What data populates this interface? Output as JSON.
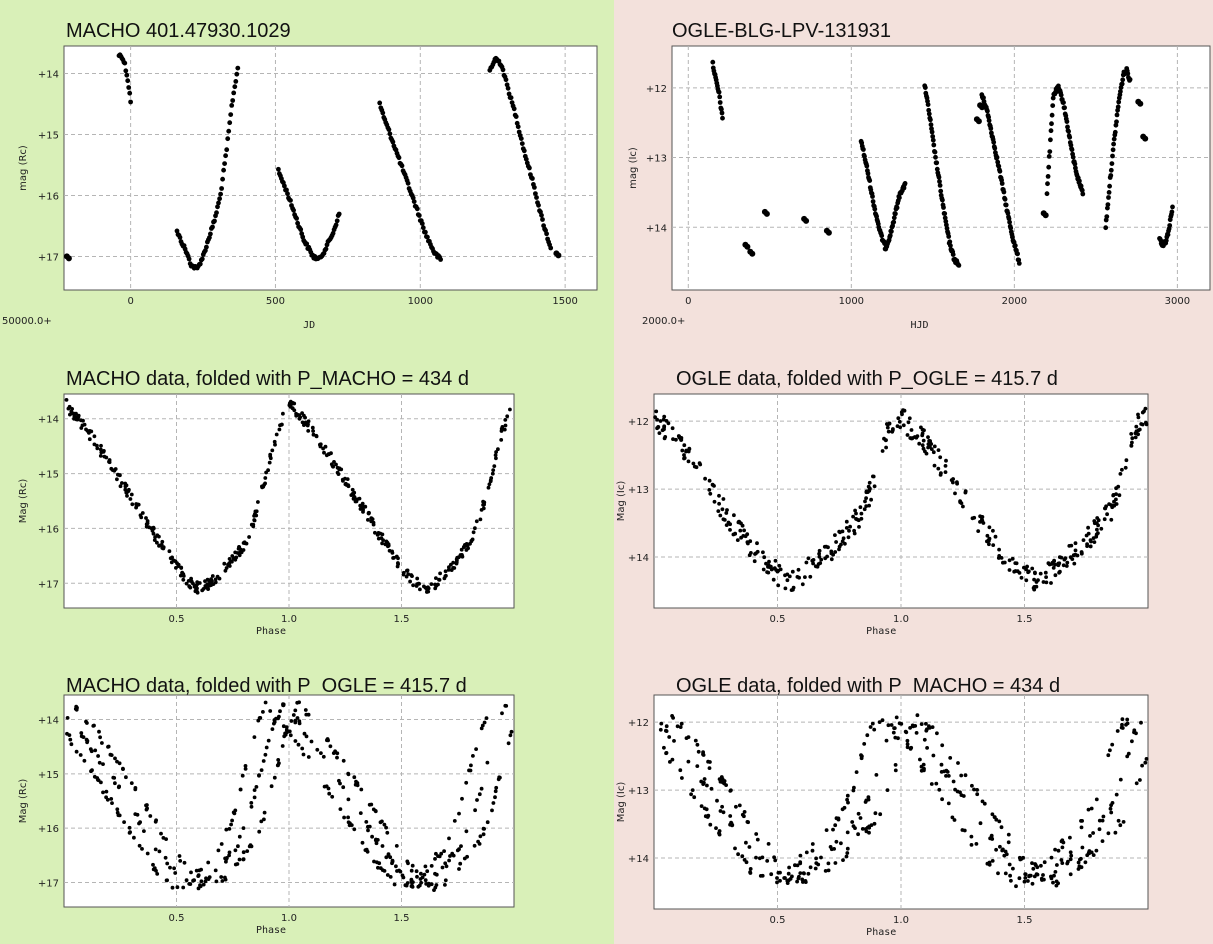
{
  "colors": {
    "left_panel_bg": "#d9f0b8",
    "right_panel_bg": "#f3e1dc",
    "marker": "#000000"
  },
  "chart_data": [
    {
      "id": "c1",
      "type": "scatter",
      "panel": "left",
      "title": "MACHO 401.47930.1029",
      "xlabel": "JD",
      "ylabel": "mag (Rc)",
      "x_offset_label": "50000.0+",
      "xlim": [
        -230,
        1610
      ],
      "ylim": [
        17.55,
        13.55
      ],
      "y_inverted": true,
      "xticks": [
        0,
        500,
        1000,
        1500
      ],
      "xtick_labels": [
        "0",
        "500",
        "1000",
        "1500"
      ],
      "yticks": [
        14,
        15,
        16,
        17
      ],
      "ytick_labels": [
        "+14",
        "+15",
        "+16",
        "+17"
      ],
      "grid": true,
      "segments": [
        {
          "x": [
            -40,
            -30,
            -20,
            -10,
            0
          ],
          "y": [
            13.7,
            13.72,
            13.85,
            14.1,
            14.45
          ]
        },
        {
          "x": [
            160,
            190,
            210,
            230,
            250,
            270,
            290,
            310,
            330,
            350,
            370
          ],
          "y": [
            16.6,
            16.9,
            17.15,
            17.2,
            17.0,
            16.7,
            16.4,
            16.0,
            15.3,
            14.5,
            13.9
          ]
        },
        {
          "x": [
            510,
            540,
            570,
            600,
            630,
            650,
            670,
            700,
            720
          ],
          "y": [
            15.6,
            15.95,
            16.35,
            16.75,
            17.0,
            17.05,
            16.9,
            16.6,
            16.3
          ]
        },
        {
          "x": [
            860,
            880,
            900,
            930,
            960,
            990,
            1020,
            1050,
            1070
          ],
          "y": [
            14.5,
            14.8,
            15.05,
            15.45,
            15.85,
            16.25,
            16.65,
            16.95,
            17.05
          ]
        },
        {
          "x": [
            1240,
            1260,
            1280,
            1300,
            1330,
            1360,
            1390,
            1410,
            1430,
            1450
          ],
          "y": [
            13.95,
            13.75,
            13.85,
            14.2,
            14.7,
            15.3,
            15.8,
            16.2,
            16.55,
            16.85
          ]
        }
      ],
      "points": [
        {
          "x": -220,
          "y": 17.0
        },
        {
          "x": 1470,
          "y": 16.95
        }
      ]
    },
    {
      "id": "c2",
      "type": "scatter",
      "panel": "right",
      "title": "OGLE-BLG-LPV-131931",
      "xlabel": "HJD",
      "ylabel": "mag (Ic)",
      "x_offset_label": "2000.0+",
      "xlim": [
        -100,
        3200
      ],
      "ylim": [
        14.9,
        11.4
      ],
      "y_inverted": true,
      "xticks": [
        0,
        1000,
        2000,
        3000
      ],
      "xtick_labels": [
        "0",
        "1000",
        "2000",
        "3000"
      ],
      "yticks": [
        12,
        13,
        14
      ],
      "ytick_labels": [
        "+12",
        "+13",
        "+14"
      ],
      "grid": true,
      "segments": [
        {
          "x": [
            150,
            170,
            190,
            210
          ],
          "y": [
            11.65,
            11.9,
            12.1,
            12.45
          ]
        },
        {
          "x": [
            1060,
            1100,
            1140,
            1180,
            1210,
            1240,
            1270,
            1300,
            1330
          ],
          "y": [
            12.75,
            13.2,
            13.7,
            14.1,
            14.3,
            14.1,
            13.8,
            13.5,
            13.4
          ]
        },
        {
          "x": [
            1450,
            1480,
            1510,
            1540,
            1570,
            1600,
            1630,
            1660
          ],
          "y": [
            11.95,
            12.4,
            12.9,
            13.35,
            13.8,
            14.2,
            14.45,
            14.55
          ]
        },
        {
          "x": [
            1800,
            1830,
            1870,
            1910,
            1950,
            1990,
            2030
          ],
          "y": [
            12.1,
            12.3,
            12.75,
            13.2,
            13.7,
            14.15,
            14.5
          ]
        },
        {
          "x": [
            2200,
            2240,
            2270,
            2300,
            2330,
            2360,
            2390,
            2420
          ],
          "y": [
            13.5,
            12.1,
            12.0,
            12.2,
            12.6,
            13.0,
            13.3,
            13.5
          ]
        },
        {
          "x": [
            2560,
            2580,
            2610,
            2640,
            2670,
            2690,
            2710
          ],
          "y": [
            14.0,
            13.5,
            12.8,
            12.2,
            11.8,
            11.75,
            11.9
          ]
        },
        {
          "x": [
            2890,
            2910,
            2930,
            2950,
            2970
          ],
          "y": [
            14.15,
            14.25,
            14.2,
            14.0,
            13.7
          ]
        }
      ],
      "points": [
        {
          "x": 350,
          "y": 14.25
        },
        {
          "x": 380,
          "y": 14.35
        },
        {
          "x": 470,
          "y": 13.78
        },
        {
          "x": 710,
          "y": 13.88
        },
        {
          "x": 850,
          "y": 14.05
        },
        {
          "x": 1770,
          "y": 12.45
        },
        {
          "x": 1790,
          "y": 12.25
        },
        {
          "x": 2180,
          "y": 13.8
        },
        {
          "x": 2760,
          "y": 12.2
        },
        {
          "x": 2790,
          "y": 12.7
        }
      ]
    },
    {
      "id": "c3",
      "type": "scatter",
      "panel": "left",
      "title": "MACHO data, folded with P_MACHO = 434 d",
      "xlabel": "Phase",
      "ylabel": "Mag (Rc)",
      "xlim": [
        0,
        2
      ],
      "ylim": [
        17.45,
        13.55
      ],
      "y_inverted": true,
      "xticks": [
        0.5,
        1.0,
        1.5
      ],
      "xtick_labels": [
        "0.5",
        "1.0",
        "1.5"
      ],
      "yticks": [
        14,
        15,
        16,
        17
      ],
      "ytick_labels": [
        "+14",
        "+15",
        "+16",
        "+17"
      ],
      "grid": true,
      "curve": {
        "x": [
          0.0,
          0.1,
          0.2,
          0.3,
          0.4,
          0.5,
          0.55,
          0.6,
          0.65,
          0.7,
          0.8,
          0.85,
          0.9,
          0.95,
          1.0
        ],
        "y": [
          13.7,
          14.2,
          14.8,
          15.45,
          16.1,
          16.7,
          16.95,
          17.1,
          17.0,
          16.8,
          16.3,
          15.8,
          15.0,
          14.2,
          13.7
        ]
      },
      "repeat_period": 1.0,
      "scatter_amplitude": 0.1
    },
    {
      "id": "c4",
      "type": "scatter",
      "panel": "right",
      "title": "OGLE data, folded with P_OGLE = 415.7 d",
      "xlabel": "Phase",
      "ylabel": "Mag (Ic)",
      "xlim": [
        0,
        2
      ],
      "ylim": [
        14.75,
        11.6
      ],
      "y_inverted": true,
      "xticks": [
        0.5,
        1.0,
        1.5
      ],
      "xtick_labels": [
        "0.5",
        "1.0",
        "1.5"
      ],
      "yticks": [
        12,
        13,
        14
      ],
      "ytick_labels": [
        "+12",
        "+13",
        "+14"
      ],
      "grid": true,
      "curve": {
        "x": [
          0.0,
          0.1,
          0.2,
          0.3,
          0.4,
          0.5,
          0.55,
          0.6,
          0.7,
          0.8,
          0.85,
          0.9,
          0.95,
          1.0
        ],
        "y": [
          11.95,
          12.3,
          12.85,
          13.4,
          13.9,
          14.25,
          14.35,
          14.25,
          13.95,
          13.55,
          13.3,
          12.8,
          12.1,
          11.95
        ]
      },
      "repeat_period": 1.0,
      "scatter_amplitude": 0.17
    },
    {
      "id": "c5",
      "type": "scatter",
      "panel": "left",
      "title": "MACHO data, folded with P_OGLE = 415.7 d",
      "xlabel": "Phase",
      "ylabel": "Mag (Rc)",
      "xlim": [
        0,
        2
      ],
      "ylim": [
        17.45,
        13.55
      ],
      "y_inverted": true,
      "xticks": [
        0.5,
        1.0,
        1.5
      ],
      "xtick_labels": [
        "0.5",
        "1.0",
        "1.5"
      ],
      "yticks": [
        14,
        15,
        16,
        17
      ],
      "ytick_labels": [
        "+14",
        "+15",
        "+16",
        "+17"
      ],
      "grid": true,
      "curve": {
        "x": [
          0.0,
          0.1,
          0.2,
          0.3,
          0.4,
          0.5,
          0.55,
          0.6,
          0.65,
          0.7,
          0.8,
          0.85,
          0.9,
          0.95,
          1.0
        ],
        "y": [
          13.7,
          14.2,
          14.8,
          15.45,
          16.1,
          16.7,
          16.95,
          17.1,
          17.0,
          16.8,
          16.3,
          15.8,
          15.0,
          14.2,
          13.7
        ]
      },
      "branch_shifts": [
        -0.1,
        -0.03,
        0.04
      ],
      "repeat_period": 1.0,
      "scatter_amplitude": 0.07
    },
    {
      "id": "c6",
      "type": "scatter",
      "panel": "right",
      "title": "OGLE data, folded with P_MACHO = 434 d",
      "xlabel": "Phase",
      "ylabel": "Mag (Ic)",
      "xlim": [
        0,
        2
      ],
      "ylim": [
        14.75,
        11.6
      ],
      "y_inverted": true,
      "xticks": [
        0.5,
        1.0,
        1.5
      ],
      "xtick_labels": [
        "0.5",
        "1.0",
        "1.5"
      ],
      "yticks": [
        12,
        13,
        14
      ],
      "ytick_labels": [
        "+12",
        "+13",
        "+14"
      ],
      "grid": true,
      "curve": {
        "x": [
          0.0,
          0.1,
          0.2,
          0.3,
          0.4,
          0.5,
          0.55,
          0.6,
          0.7,
          0.8,
          0.85,
          0.9,
          0.95,
          1.0
        ],
        "y": [
          11.95,
          12.3,
          12.85,
          13.4,
          13.9,
          14.25,
          14.35,
          14.25,
          13.95,
          13.55,
          13.3,
          12.8,
          12.1,
          11.95
        ]
      },
      "branch_shifts": [
        -0.08,
        0.0,
        0.07
      ],
      "repeat_period": 1.0,
      "scatter_amplitude": 0.08
    }
  ]
}
